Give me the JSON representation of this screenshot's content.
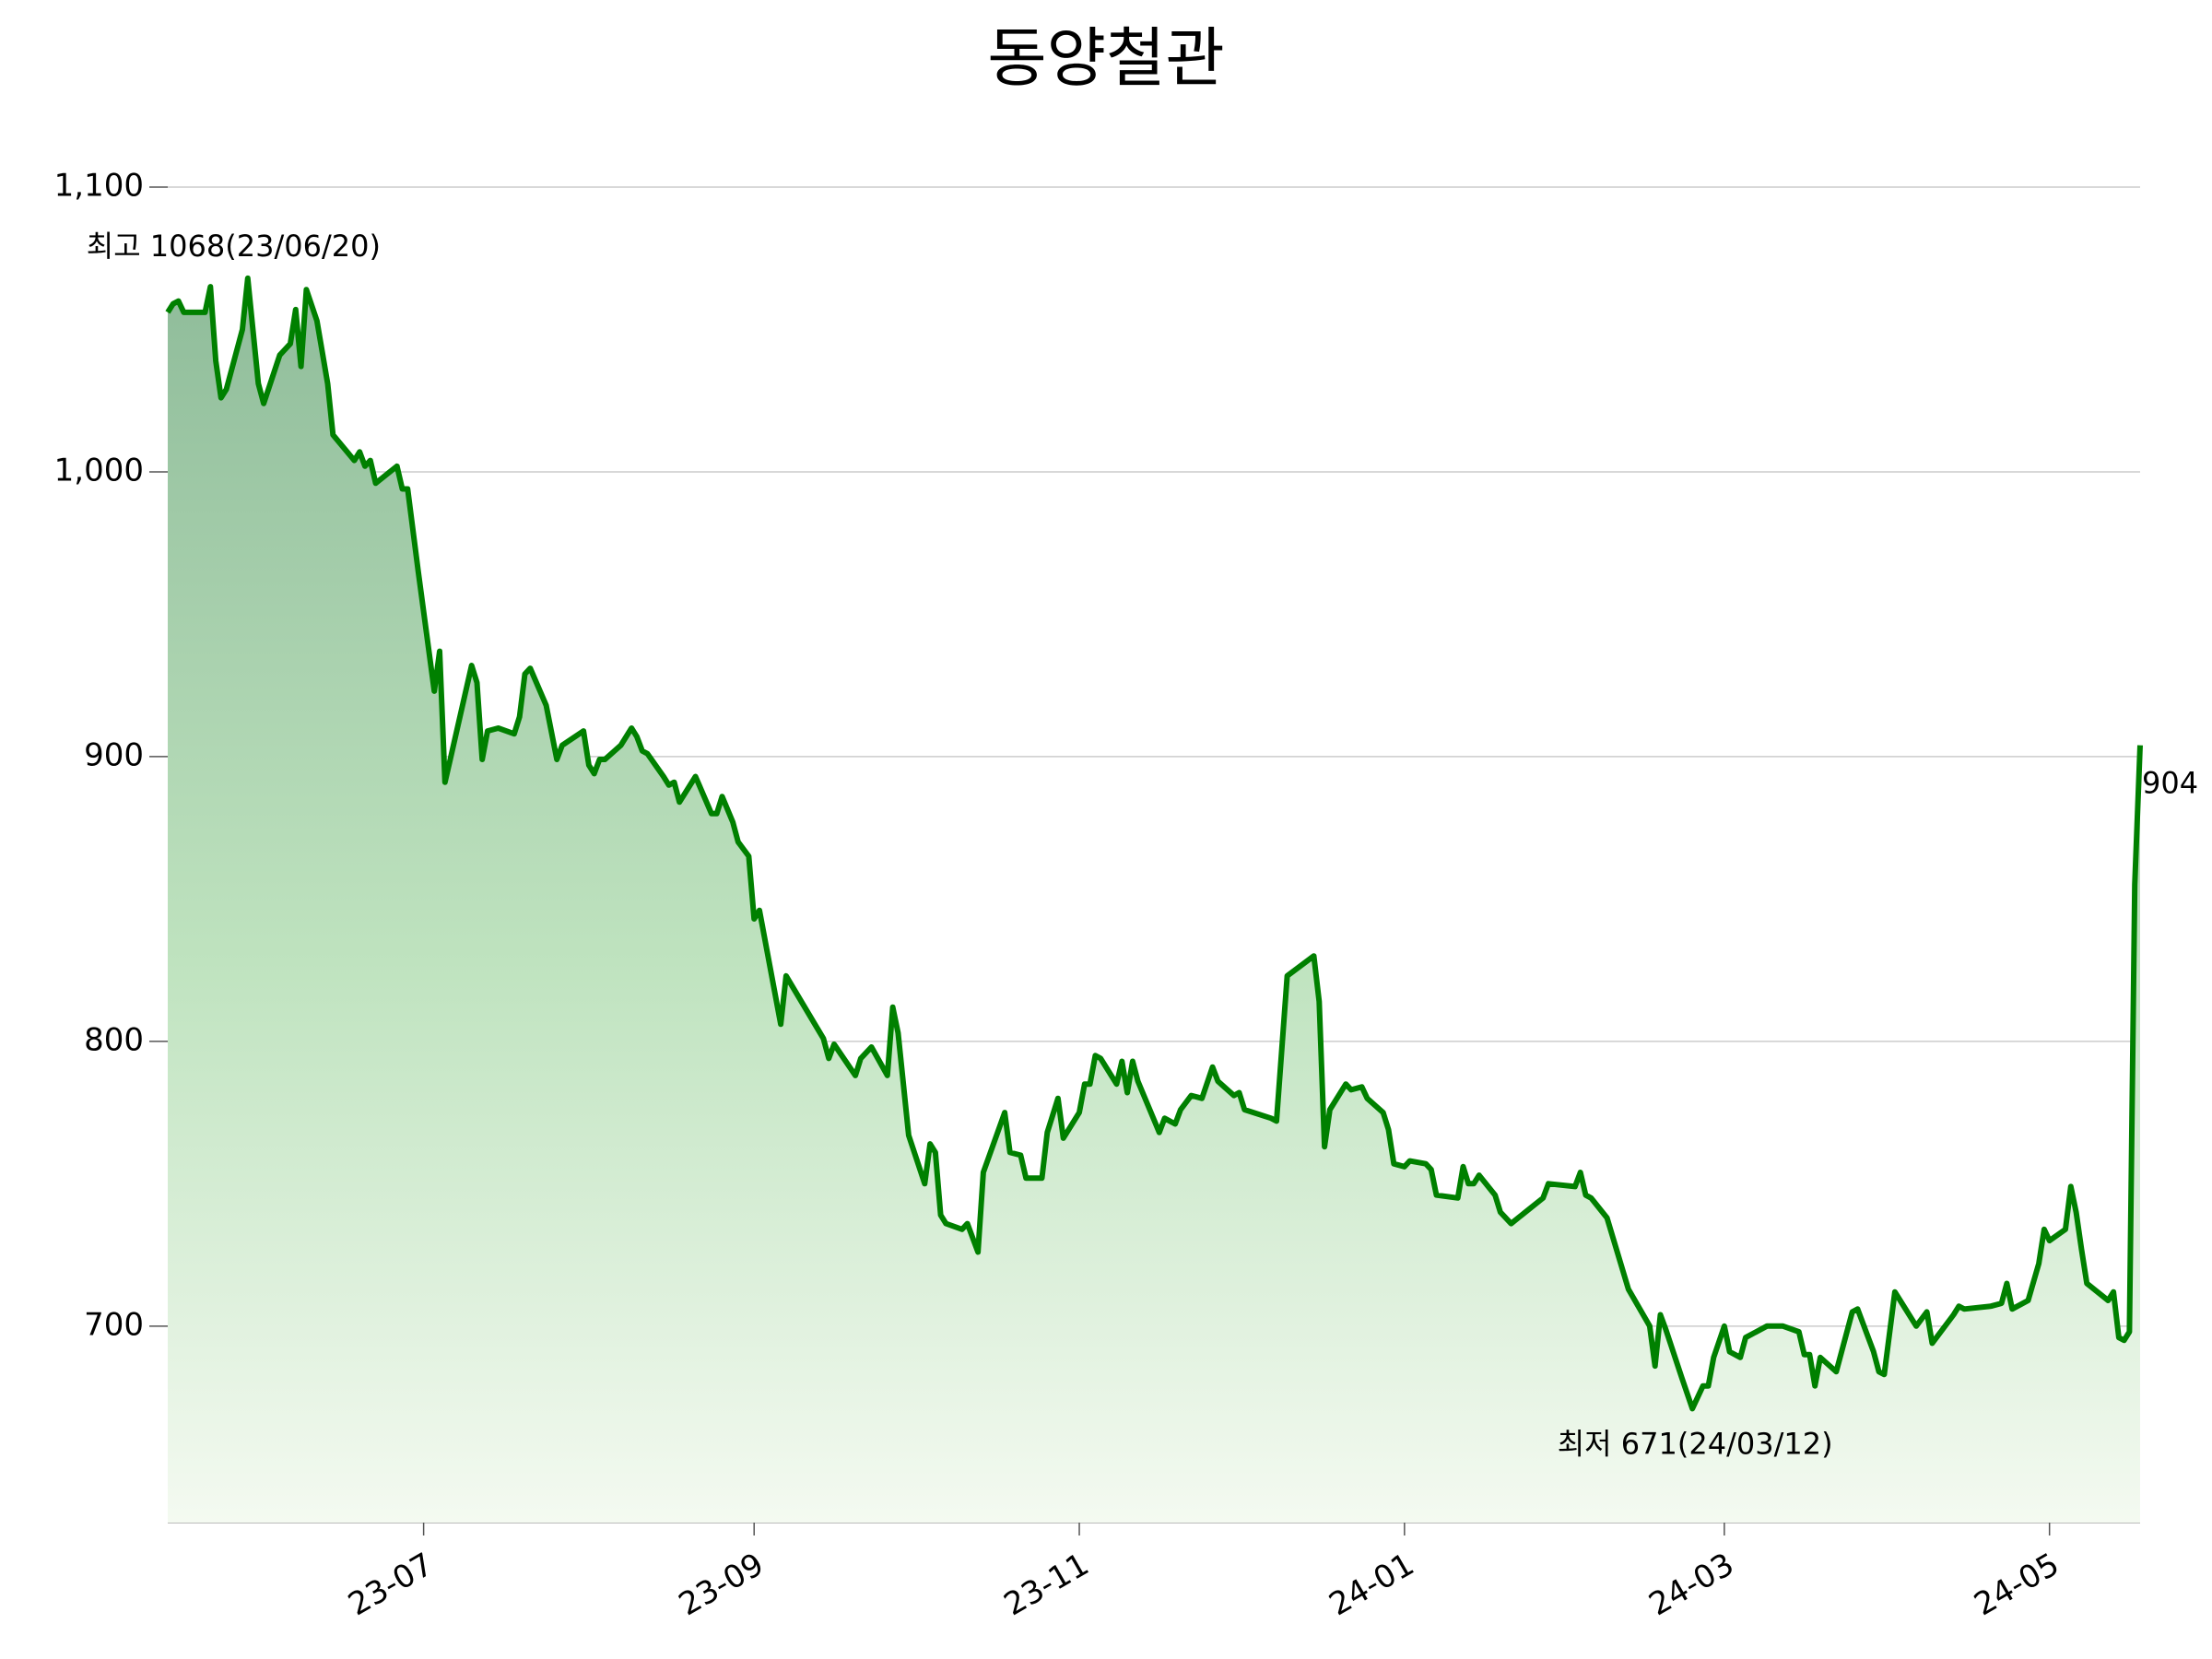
{
  "chart_data": {
    "type": "area-line",
    "title": "동양철관",
    "color": "#008000",
    "gradient": [
      "#8fbc9a",
      "#bfe3bf",
      "#f4faf1"
    ],
    "grid": true,
    "x": [
      -48,
      -47,
      -46,
      -45,
      -41,
      -40,
      -39,
      -38,
      -37,
      -34,
      -33,
      -31,
      -30,
      -27,
      -25,
      -24,
      -23,
      -22,
      -20,
      -18,
      -17,
      -13,
      -12,
      -11,
      -10,
      -9,
      -5,
      -4,
      -3,
      -1,
      2,
      3,
      4,
      5,
      9,
      10,
      11,
      12,
      14,
      17,
      18,
      19,
      20,
      23,
      25,
      26,
      30,
      31,
      32,
      33,
      34,
      37,
      39,
      40,
      41,
      42,
      45,
      46,
      47,
      48,
      51,
      54,
      55,
      56,
      58,
      59,
      61,
      62,
      63,
      67,
      68,
      75,
      76,
      77,
      81,
      82,
      84,
      87,
      88,
      89,
      91,
      94,
      95,
      96,
      97,
      98,
      101,
      102,
      104,
      105,
      109,
      110,
      112,
      113,
      116,
      117,
      119,
      120,
      123,
      124,
      125,
      126,
      127,
      130,
      131,
      132,
      133,
      134,
      136,
      138,
      139,
      141,
      142,
      144,
      146,
      148,
      149,
      152,
      153,
      154,
      159,
      160,
      162,
      167,
      168,
      169,
      170,
      173,
      174,
      176,
      177,
      180,
      181,
      182,
      184,
      185,
      188,
      189,
      190,
      194,
      195,
      196,
      197,
      198,
      201,
      202,
      204,
      210,
      211,
      216,
      217,
      218,
      219,
      222,
      226,
      230,
      231,
      232,
      233,
      236,
      238,
      240,
      241,
      242,
      244,
      245,
      247,
      248,
      252,
      255,
      258,
      259,
      260,
      261,
      262,
      265,
      268,
      269,
      272,
      273,
      274,
      276,
      277,
      280,
      282,
      283,
      287,
      288,
      289,
      294,
      296,
      297,
      298,
      301,
      303,
      304,
      305,
      308,
      309,
      310,
      311,
      312,
      316,
      317,
      318,
      319,
      320,
      321,
      322
    ],
    "values": [
      1056,
      1059,
      1060,
      1056,
      1056,
      1065,
      1039,
      1026,
      1029,
      1050,
      1068,
      1031,
      1024,
      1041,
      1045,
      1057,
      1037,
      1064,
      1053,
      1031,
      1013,
      1004,
      1007,
      1002,
      1004,
      996,
      1002,
      994,
      994,
      965,
      923,
      937,
      891,
      899,
      932,
      926,
      899,
      909,
      910,
      908,
      914,
      929,
      931,
      918,
      899,
      904,
      909,
      897,
      894,
      899,
      899,
      904,
      910,
      907,
      902,
      901,
      893,
      890,
      891,
      884,
      893,
      880,
      880,
      886,
      877,
      870,
      865,
      843,
      846,
      806,
      823,
      801,
      794,
      799,
      788,
      794,
      798,
      788,
      812,
      803,
      767,
      750,
      764,
      761,
      739,
      736,
      734,
      736,
      726,
      754,
      775,
      761,
      760,
      752,
      752,
      768,
      780,
      766,
      775,
      785,
      785,
      795,
      794,
      785,
      793,
      782,
      793,
      786,
      777,
      768,
      773,
      771,
      776,
      781,
      780,
      791,
      786,
      781,
      782,
      776,
      773,
      772,
      823,
      830,
      814,
      763,
      776,
      785,
      783,
      784,
      780,
      775,
      769,
      757,
      756,
      758,
      757,
      755,
      746,
      745,
      756,
      750,
      750,
      753,
      746,
      740,
      736,
      745,
      750,
      749,
      754,
      746,
      745,
      738,
      713,
      700,
      686,
      704,
      699,
      682,
      671,
      679,
      679,
      689,
      700,
      691,
      689,
      696,
      700,
      700,
      698,
      690,
      690,
      679,
      689,
      684,
      705,
      706,
      691,
      684,
      683,
      712,
      709,
      700,
      705,
      694,
      704,
      707,
      706,
      707,
      708,
      715,
      706,
      709,
      722,
      734,
      730,
      734,
      749,
      740,
      727,
      715,
      709,
      712,
      696,
      695,
      698,
      855,
      904
    ],
    "xlim": [
      -48,
      322
    ],
    "xticks": [
      {
        "value": 0,
        "label": "23-07"
      },
      {
        "value": 62,
        "label": "23-09"
      },
      {
        "value": 123,
        "label": "23-11"
      },
      {
        "value": 184,
        "label": "24-01"
      },
      {
        "value": 244,
        "label": "24-03"
      },
      {
        "value": 305,
        "label": "24-05"
      }
    ],
    "ylim": [
      631,
      1100
    ],
    "yticks": [
      700,
      800,
      900,
      {
        "value": 1000,
        "label": "1,000"
      },
      {
        "value": 1100,
        "label": "1,100"
      }
    ],
    "annotations": {
      "high": {
        "text": "최고 1068(23/06/20)",
        "color": "#ff0000"
      },
      "low": {
        "text": "최저 671(24/03/12)",
        "color": "#0000ff"
      },
      "last": {
        "text": "904",
        "color": "#000000"
      }
    }
  }
}
